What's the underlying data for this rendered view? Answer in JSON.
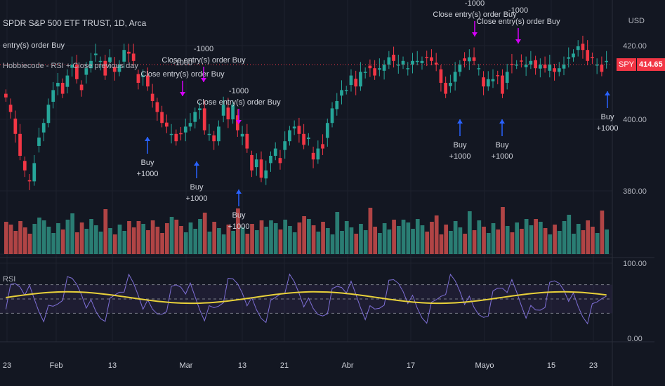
{
  "header": {
    "symbol_title": "SPDR S&P 500 ETF TRUST, 1D, Arca",
    "strategy_title": "Hobbiecode - RSI + Close previous day",
    "currency": "USD",
    "overlay_line": "entry(s) order Buy"
  },
  "price_tag": {
    "symbol": "SPY",
    "value": "414.65"
  },
  "rsi_label": "RSI",
  "colors": {
    "background": "#131722",
    "up": "#26a69a",
    "down": "#f23645",
    "vol_up": "#2a7d73",
    "vol_down": "#b04445",
    "rsi_line": "#7e6fd6",
    "rsi_ma": "#e8d13a",
    "marker_buy": "#2962ff",
    "marker_close": "#d500f9"
  },
  "chart_data": {
    "type": "candlestick",
    "y_ticks": [
      "420.00",
      "400.00",
      "380.00"
    ],
    "rsi_ticks": [
      "100.00",
      "0.00"
    ],
    "x_ticks": [
      "23",
      "Feb",
      "13",
      "Mar",
      "13",
      "21",
      "Abr",
      "17",
      "Mayo",
      "15",
      "23"
    ],
    "ohlc_close": [
      406,
      402,
      396,
      390,
      386,
      383,
      388,
      395,
      399,
      404,
      408,
      410,
      407,
      412,
      415,
      411,
      408,
      414,
      416,
      418,
      416,
      412,
      417,
      413,
      415,
      419,
      418,
      416,
      410,
      412,
      409,
      405,
      402,
      399,
      398,
      396,
      394,
      396,
      398,
      399,
      402,
      403,
      397,
      396,
      394,
      398,
      404,
      400,
      404,
      397,
      396,
      392,
      386,
      389,
      384,
      386,
      390,
      392,
      388,
      394,
      397,
      398,
      396,
      393,
      395,
      389,
      392,
      392,
      399,
      403,
      405,
      408,
      408,
      412,
      409,
      413,
      413,
      414,
      412,
      414,
      415,
      417,
      416,
      415,
      416,
      414,
      416,
      416,
      416,
      417,
      416,
      415,
      410,
      407,
      410,
      413,
      415,
      416,
      417,
      416,
      414,
      409,
      411,
      411,
      412,
      407,
      413,
      415,
      415,
      416,
      415,
      416,
      414,
      415,
      414,
      415,
      413,
      414,
      415,
      417,
      418,
      420,
      419,
      416,
      417,
      415,
      413,
      416
    ],
    "trades": [
      {
        "type": "buy",
        "label": "Buy",
        "qty": "+1000"
      },
      {
        "type": "buy",
        "label": "Buy",
        "qty": "+1000"
      },
      {
        "type": "buy",
        "label": "Buy",
        "qty": "+1000"
      },
      {
        "type": "buy",
        "label": "Buy",
        "qty": "+1000"
      },
      {
        "type": "buy",
        "label": "Buy",
        "qty": "+1000"
      },
      {
        "type": "buy",
        "label": "Buy",
        "qty": "+1000"
      },
      {
        "type": "close",
        "label": "Close entry(s) order Buy",
        "qty": "-1000"
      },
      {
        "type": "close",
        "label": "Close entry(s) order Buy",
        "qty": "-1000"
      },
      {
        "type": "close",
        "label": "Close entry(s) order Buy",
        "qty": "-1000"
      },
      {
        "type": "close",
        "label": "Close entry(s) order Buy",
        "qty": "-1000"
      },
      {
        "type": "close",
        "label": "Close entry(s) order Buy",
        "qty": "-1000"
      }
    ]
  }
}
